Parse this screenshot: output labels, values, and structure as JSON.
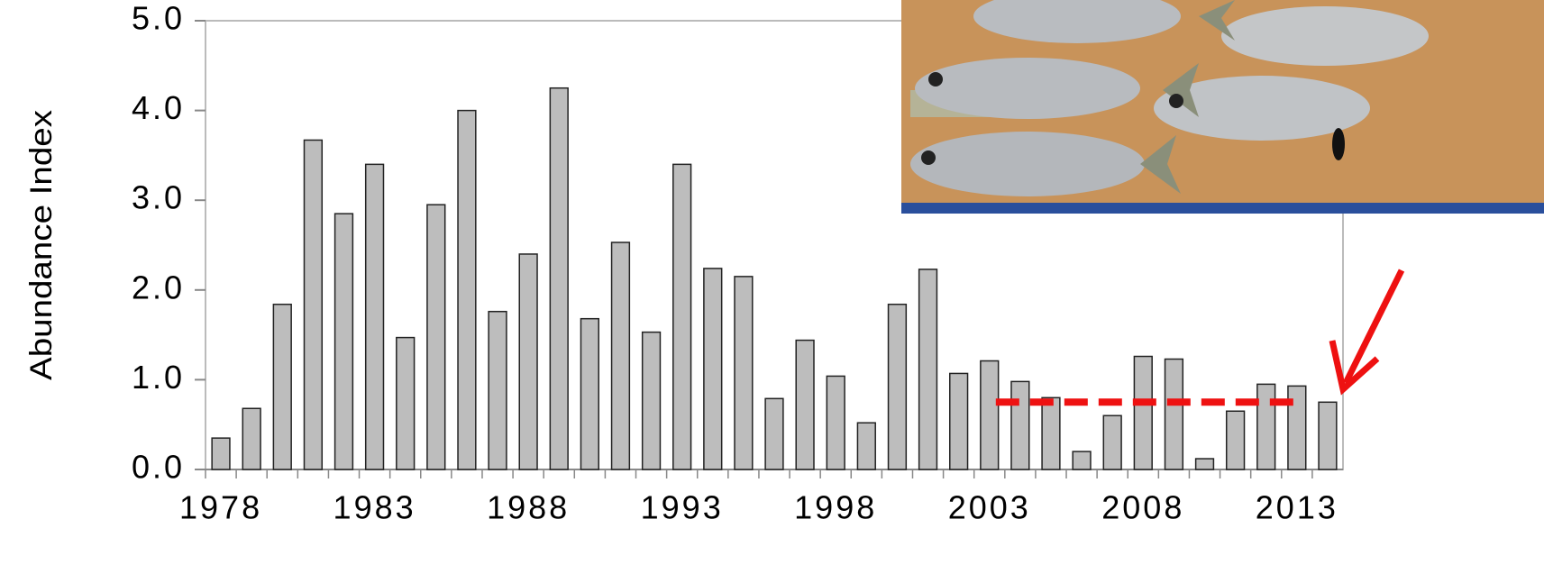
{
  "chart_data": {
    "type": "bar",
    "y_label": "Abundance Index",
    "categories": [
      "1978",
      null,
      null,
      null,
      null,
      "1983",
      null,
      null,
      null,
      null,
      "1988",
      null,
      null,
      null,
      null,
      "1993",
      null,
      null,
      null,
      null,
      "1998",
      null,
      null,
      null,
      null,
      "2003",
      null,
      null,
      null,
      null,
      "2008",
      null,
      null,
      null,
      null,
      "2013",
      null
    ],
    "values": [
      0.35,
      0.68,
      1.84,
      3.67,
      2.85,
      3.4,
      1.47,
      2.95,
      4.0,
      1.76,
      2.4,
      4.25,
      1.68,
      2.53,
      1.53,
      3.4,
      2.24,
      2.15,
      0.79,
      1.44,
      1.04,
      0.52,
      1.84,
      2.23,
      1.07,
      1.21,
      0.98,
      0.8,
      0.2,
      0.6,
      1.26,
      1.23,
      0.12,
      0.65,
      0.95,
      0.93,
      0.75
    ],
    "color": "#bdbdbd",
    "ylim": [
      0,
      5
    ],
    "yticks": [
      {
        "value": 0,
        "label": "0.0"
      },
      {
        "value": 1,
        "label": "1.0"
      },
      {
        "value": 2,
        "label": "2.0"
      },
      {
        "value": 3,
        "label": "3.0"
      },
      {
        "value": 4,
        "label": "4.0"
      },
      {
        "value": 5,
        "label": "5.0"
      }
    ],
    "reference_line": {
      "value": 0.75,
      "color": "#ee1111"
    },
    "grid": false
  }
}
